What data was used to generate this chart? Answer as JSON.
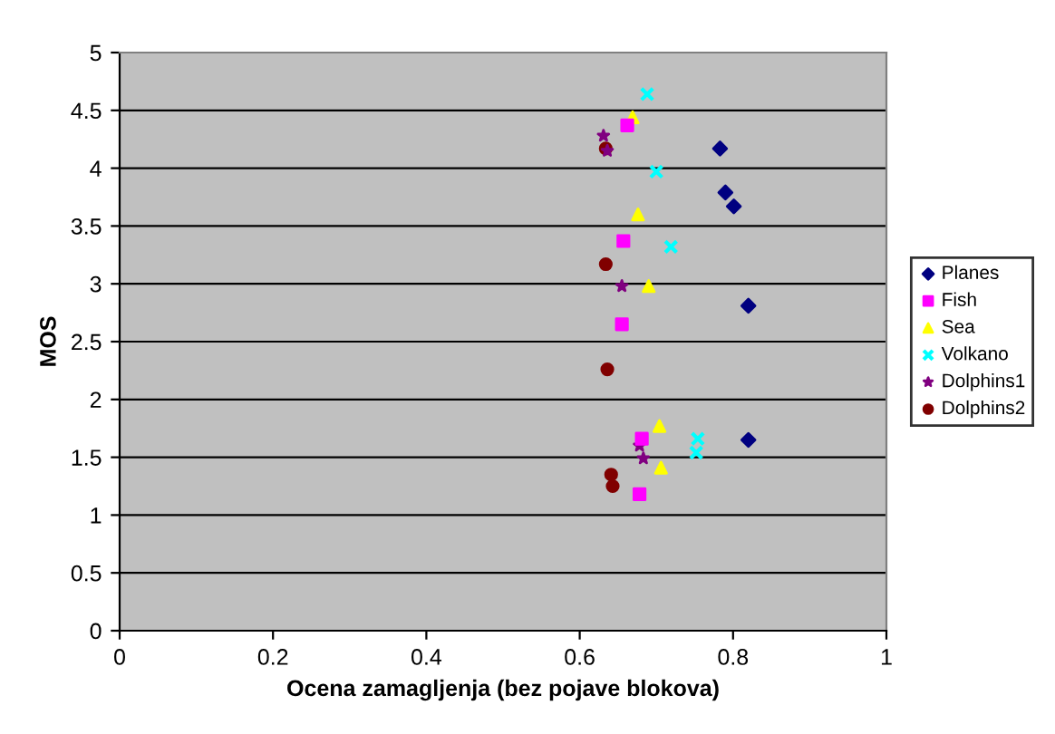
{
  "chart_data": {
    "type": "scatter",
    "xlabel": "Ocena zamagljenja (bez pojave blokova)",
    "ylabel": "MOS",
    "xlim": [
      0,
      1
    ],
    "xticks": [
      0,
      0.2,
      0.4,
      0.6,
      0.8,
      1
    ],
    "ylim": [
      0,
      5
    ],
    "yticks": [
      0,
      0.5,
      1,
      1.5,
      2,
      2.5,
      3,
      3.5,
      4,
      4.5,
      5
    ],
    "grid": "y",
    "legend": "right",
    "series": [
      {
        "name": "Planes",
        "color": "#000080",
        "marker": "diamond",
        "x": [
          0.783,
          0.79,
          0.801,
          0.82,
          0.82
        ],
        "values": [
          4.17,
          3.79,
          3.67,
          2.81,
          1.65
        ]
      },
      {
        "name": "Fish",
        "color": "#ff00ff",
        "marker": "square",
        "x": [
          0.662,
          0.657,
          0.655,
          0.681,
          0.678
        ],
        "values": [
          4.37,
          3.37,
          2.65,
          1.66,
          1.18
        ]
      },
      {
        "name": "Sea",
        "color": "#ffff00",
        "marker": "triangle",
        "x": [
          0.669,
          0.676,
          0.69,
          0.704,
          0.706
        ],
        "values": [
          4.44,
          3.6,
          2.98,
          1.77,
          1.41
        ]
      },
      {
        "name": "Volkano",
        "color": "#00ffff",
        "marker": "cross",
        "x": [
          0.688,
          0.7,
          0.719,
          0.754,
          0.752
        ],
        "values": [
          4.64,
          3.97,
          3.32,
          1.66,
          1.54
        ]
      },
      {
        "name": "Dolphins1",
        "color": "#800080",
        "marker": "star",
        "x": [
          0.631,
          0.636,
          0.655,
          0.678,
          0.683
        ],
        "values": [
          4.28,
          4.15,
          2.98,
          1.6,
          1.49
        ]
      },
      {
        "name": "Dolphins2",
        "color": "#800000",
        "marker": "circle",
        "x": [
          0.634,
          0.634,
          0.636,
          0.641,
          0.643
        ],
        "values": [
          4.17,
          3.17,
          2.26,
          1.35,
          1.25
        ]
      }
    ]
  }
}
